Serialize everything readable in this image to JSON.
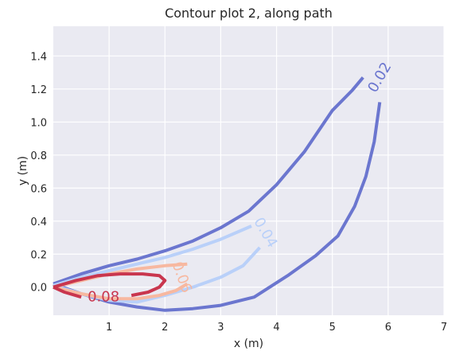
{
  "chart_data": {
    "type": "contour",
    "title": "Contour plot 2, along path",
    "xlabel": "x (m)",
    "ylabel": "y (m)",
    "xlim": [
      0.0,
      7.0
    ],
    "ylim": [
      -0.17,
      1.58
    ],
    "x_ticks": [
      "1",
      "2",
      "3",
      "4",
      "5",
      "6",
      "7"
    ],
    "x_tick_values": [
      1,
      2,
      3,
      4,
      5,
      6,
      7
    ],
    "y_ticks": [
      "0.0",
      "0.2",
      "0.4",
      "0.6",
      "0.8",
      "1.0",
      "1.2",
      "1.4"
    ],
    "y_tick_values": [
      0.0,
      0.2,
      0.4,
      0.6,
      0.8,
      1.0,
      1.2,
      1.4
    ],
    "grid": true,
    "background_color": "#eaeaf2",
    "grid_color": "#ffffff",
    "contours": [
      {
        "level": 0.02,
        "label": "0.02",
        "color": "#6b76cf",
        "label_at": [
          5.85,
          1.27
        ],
        "label_rotation": -60,
        "segments": [
          [
            [
              0.0,
              0.02
            ],
            [
              0.5,
              0.08
            ],
            [
              1.0,
              0.13
            ],
            [
              1.5,
              0.17
            ],
            [
              2.0,
              0.22
            ],
            [
              2.5,
              0.28
            ],
            [
              3.0,
              0.36
            ],
            [
              3.5,
              0.46
            ],
            [
              4.0,
              0.62
            ],
            [
              4.5,
              0.82
            ],
            [
              5.0,
              1.07
            ],
            [
              5.35,
              1.19
            ],
            [
              5.55,
              1.27
            ]
          ],
          [
            [
              5.85,
              1.12
            ],
            [
              5.75,
              0.88
            ],
            [
              5.6,
              0.67
            ],
            [
              5.4,
              0.49
            ],
            [
              5.1,
              0.31
            ],
            [
              4.7,
              0.19
            ],
            [
              4.2,
              0.07
            ],
            [
              3.6,
              -0.06
            ],
            [
              3.0,
              -0.11
            ],
            [
              2.5,
              -0.13
            ],
            [
              2.0,
              -0.14
            ],
            [
              1.5,
              -0.12
            ],
            [
              1.0,
              -0.09
            ],
            [
              0.5,
              -0.04
            ],
            [
              0.0,
              0.02
            ]
          ]
        ]
      },
      {
        "level": 0.04,
        "label": "0.04",
        "color": "#b9d0f9",
        "label_at": [
          3.8,
          0.33
        ],
        "label_rotation": 60,
        "segments": [
          [
            [
              0.0,
              0.01
            ],
            [
              0.5,
              0.06
            ],
            [
              1.0,
              0.1
            ],
            [
              1.5,
              0.14
            ],
            [
              2.0,
              0.18
            ],
            [
              2.5,
              0.23
            ],
            [
              3.0,
              0.29
            ],
            [
              3.55,
              0.37
            ]
          ],
          [
            [
              3.7,
              0.24
            ],
            [
              3.4,
              0.13
            ],
            [
              3.0,
              0.06
            ],
            [
              2.5,
              0.0
            ],
            [
              2.0,
              -0.05
            ],
            [
              1.5,
              -0.09
            ],
            [
              1.0,
              -0.08
            ],
            [
              0.5,
              -0.04
            ],
            [
              0.0,
              0.01
            ]
          ]
        ]
      },
      {
        "level": 0.06,
        "label": "0.06",
        "color": "#f7b8a0",
        "label_at": [
          2.3,
          0.06
        ],
        "label_rotation": 70,
        "segments": [
          [
            [
              0.0,
              0.0
            ],
            [
              0.5,
              0.04
            ],
            [
              1.0,
              0.08
            ],
            [
              1.5,
              0.11
            ],
            [
              2.0,
              0.13
            ],
            [
              2.4,
              0.14
            ]
          ],
          [
            [
              2.4,
              0.02
            ],
            [
              2.2,
              -0.02
            ],
            [
              1.9,
              -0.05
            ],
            [
              1.5,
              -0.07
            ],
            [
              1.0,
              -0.07
            ],
            [
              0.5,
              -0.04
            ],
            [
              0.0,
              0.0
            ]
          ]
        ]
      },
      {
        "level": 0.08,
        "label": "0.08",
        "color": "#c9364e",
        "label_at": [
          0.9,
          -0.06
        ],
        "label_rotation": 0,
        "segments": [
          [
            [
              0.0,
              0.0
            ],
            [
              0.4,
              0.04
            ],
            [
              0.8,
              0.07
            ],
            [
              1.2,
              0.08
            ],
            [
              1.6,
              0.08
            ],
            [
              1.9,
              0.07
            ],
            [
              2.0,
              0.04
            ],
            [
              1.9,
              0.0
            ],
            [
              1.7,
              -0.03
            ],
            [
              1.4,
              -0.05
            ]
          ],
          [
            [
              0.5,
              -0.06
            ],
            [
              0.2,
              -0.03
            ],
            [
              0.0,
              0.0
            ]
          ]
        ]
      }
    ]
  }
}
